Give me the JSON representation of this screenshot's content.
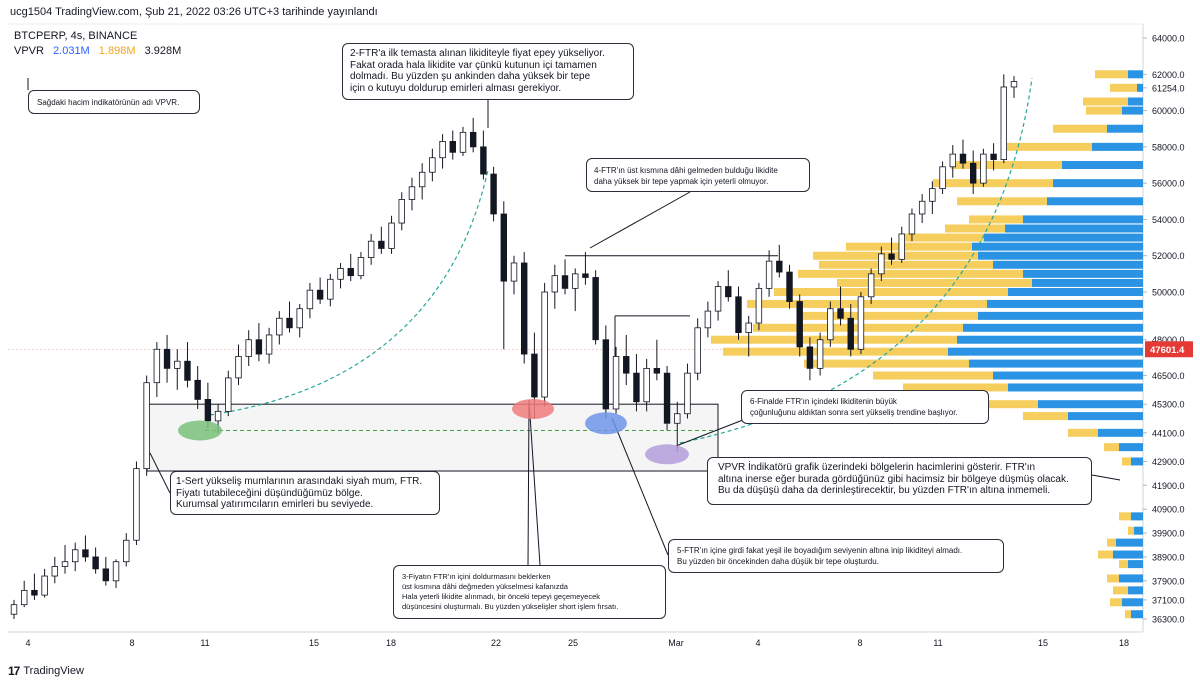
{
  "header": {
    "publish_line": "ucg1504 TradingView.com, Şub 21, 2022 03:26 UTC+3 tarihinde yayınlandı",
    "symbol_line": "BTCPERP, 4s, BINANCE",
    "indicator_name": "VPVR",
    "vpvr_values": [
      "2.031M",
      "1.898M",
      "3.928M"
    ],
    "colors": {
      "value_blue": "#2962ff",
      "value_orange": "#f2a51a",
      "value_dark": "#131722"
    }
  },
  "footer": {
    "brand": "TradingView",
    "logo": "17"
  },
  "chart_data": {
    "type": "candlestick",
    "price_axis_ticks": [
      "64000.0",
      "62000.0",
      "61254.0",
      "60000.0",
      "58000.0",
      "56000.0",
      "54000.0",
      "52000.0",
      "50000.0",
      "48000.0",
      "46500.0",
      "45300.0",
      "44100.0",
      "42900.0",
      "41900.0",
      "40900.0",
      "39900.0",
      "38900.0",
      "37900.0",
      "37100.0",
      "36300.0"
    ],
    "last_price_label": "47601.4",
    "time_axis_ticks": [
      "4",
      "8",
      "11",
      "15",
      "18",
      "22",
      "25",
      "Mar",
      "4",
      "8",
      "11",
      "15",
      "18"
    ],
    "candles": [
      [
        36500,
        37100,
        36300,
        36900
      ],
      [
        36900,
        37900,
        36800,
        37500
      ],
      [
        37500,
        38200,
        37100,
        37300
      ],
      [
        37300,
        38400,
        37200,
        38100
      ],
      [
        38100,
        38900,
        37800,
        38500
      ],
      [
        38500,
        39400,
        38200,
        38700
      ],
      [
        38700,
        39500,
        38300,
        39200
      ],
      [
        39200,
        39800,
        38700,
        38900
      ],
      [
        38900,
        39300,
        38200,
        38400
      ],
      [
        38400,
        38900,
        37700,
        37900
      ],
      [
        37900,
        38800,
        37600,
        38700
      ],
      [
        38700,
        39900,
        38500,
        39600
      ],
      [
        39600,
        42900,
        39400,
        42600
      ],
      [
        42600,
        46500,
        42300,
        46200
      ],
      [
        46200,
        47900,
        45600,
        47600
      ],
      [
        47600,
        48200,
        46200,
        46800
      ],
      [
        46800,
        47600,
        45900,
        47100
      ],
      [
        47100,
        47900,
        46000,
        46300
      ],
      [
        46300,
        46900,
        45100,
        45500
      ],
      [
        45500,
        46200,
        44300,
        44600
      ],
      [
        44600,
        45300,
        44100,
        45000
      ],
      [
        45000,
        46700,
        44800,
        46400
      ],
      [
        46400,
        47800,
        46100,
        47300
      ],
      [
        47300,
        48400,
        46900,
        48000
      ],
      [
        48000,
        48700,
        47100,
        47400
      ],
      [
        47400,
        48500,
        47000,
        48200
      ],
      [
        48200,
        49200,
        47800,
        48900
      ],
      [
        48900,
        49600,
        48300,
        48500
      ],
      [
        48500,
        49500,
        48100,
        49300
      ],
      [
        49300,
        50500,
        48900,
        50100
      ],
      [
        50100,
        50800,
        49500,
        49700
      ],
      [
        49700,
        51000,
        49400,
        50700
      ],
      [
        50700,
        51600,
        50200,
        51300
      ],
      [
        51300,
        52100,
        50600,
        50900
      ],
      [
        50900,
        52200,
        50700,
        51900
      ],
      [
        51900,
        53200,
        51500,
        52800
      ],
      [
        52800,
        53600,
        52100,
        52400
      ],
      [
        52400,
        54200,
        52100,
        53800
      ],
      [
        53800,
        55500,
        53400,
        55100
      ],
      [
        55100,
        56300,
        54500,
        55800
      ],
      [
        55800,
        57100,
        55100,
        56600
      ],
      [
        56600,
        57900,
        56100,
        57400
      ],
      [
        57400,
        58700,
        56800,
        58300
      ],
      [
        58300,
        58900,
        57300,
        57700
      ],
      [
        57700,
        59100,
        57500,
        58800
      ],
      [
        58800,
        59600,
        57700,
        58000
      ],
      [
        58000,
        58900,
        56200,
        56500
      ],
      [
        56500,
        56900,
        53900,
        54300
      ],
      [
        54300,
        55000,
        47600,
        50600
      ],
      [
        50600,
        52000,
        49900,
        51600
      ],
      [
        51600,
        52200,
        47000,
        47400
      ],
      [
        47400,
        48300,
        44700,
        45600
      ],
      [
        45600,
        50500,
        45200,
        50000
      ],
      [
        50000,
        51500,
        49300,
        50900
      ],
      [
        50900,
        51800,
        49900,
        50200
      ],
      [
        50200,
        51300,
        49200,
        51000
      ],
      [
        51000,
        52200,
        50400,
        50800
      ],
      [
        50800,
        51200,
        47800,
        48000
      ],
      [
        48000,
        48600,
        44700,
        45100
      ],
      [
        45100,
        47700,
        44900,
        47300
      ],
      [
        47300,
        48200,
        46100,
        46600
      ],
      [
        46600,
        47400,
        45000,
        45400
      ],
      [
        45400,
        47200,
        45000,
        46800
      ],
      [
        46800,
        48000,
        46300,
        46600
      ],
      [
        46600,
        46900,
        44200,
        44500
      ],
      [
        44500,
        45400,
        43300,
        44900
      ],
      [
        44900,
        47000,
        44700,
        46600
      ],
      [
        46600,
        48900,
        46300,
        48500
      ],
      [
        48500,
        49600,
        48100,
        49200
      ],
      [
        49200,
        50600,
        48800,
        50300
      ],
      [
        50300,
        51200,
        49600,
        49800
      ],
      [
        49800,
        50300,
        48000,
        48300
      ],
      [
        48300,
        49000,
        47300,
        48700
      ],
      [
        48700,
        50500,
        48400,
        50200
      ],
      [
        50200,
        52300,
        49800,
        51700
      ],
      [
        51700,
        52600,
        50800,
        51100
      ],
      [
        51100,
        51500,
        49300,
        49600
      ],
      [
        49600,
        49900,
        47300,
        47700
      ],
      [
        47700,
        48100,
        46300,
        46800
      ],
      [
        46800,
        48300,
        46500,
        48000
      ],
      [
        48000,
        49600,
        47700,
        49300
      ],
      [
        49300,
        50300,
        48600,
        48900
      ],
      [
        48900,
        49500,
        47300,
        47600
      ],
      [
        47600,
        50000,
        47400,
        49800
      ],
      [
        49800,
        51300,
        49500,
        51000
      ],
      [
        51000,
        52500,
        50600,
        52100
      ],
      [
        52100,
        53000,
        51500,
        51800
      ],
      [
        51800,
        53600,
        51600,
        53200
      ],
      [
        53200,
        54600,
        52800,
        54300
      ],
      [
        54300,
        55400,
        53800,
        55000
      ],
      [
        55000,
        56100,
        54300,
        55700
      ],
      [
        55700,
        57200,
        55400,
        56900
      ],
      [
        56900,
        58100,
        56300,
        57600
      ],
      [
        57600,
        58400,
        56800,
        57100
      ],
      [
        57100,
        57800,
        55400,
        56000
      ],
      [
        56000,
        57900,
        55800,
        57600
      ],
      [
        57600,
        58200,
        56700,
        57300
      ],
      [
        57300,
        62000,
        57100,
        61300
      ],
      [
        61300,
        61900,
        60700,
        61600
      ]
    ],
    "volume_profile": [
      {
        "price": 62000,
        "blue": 0.05,
        "orange": 0.11
      },
      {
        "price": 61254,
        "blue": 0.02,
        "orange": 0.09
      },
      {
        "price": 60500,
        "blue": 0.05,
        "orange": 0.15
      },
      {
        "price": 60000,
        "blue": 0.07,
        "orange": 0.12
      },
      {
        "price": 59000,
        "blue": 0.12,
        "orange": 0.18
      },
      {
        "price": 58000,
        "blue": 0.17,
        "orange": 0.3
      },
      {
        "price": 57000,
        "blue": 0.27,
        "orange": 0.37
      },
      {
        "price": 56000,
        "blue": 0.3,
        "orange": 0.4
      },
      {
        "price": 55000,
        "blue": 0.32,
        "orange": 0.3
      },
      {
        "price": 54000,
        "blue": 0.4,
        "orange": 0.18
      },
      {
        "price": 53500,
        "blue": 0.46,
        "orange": 0.2
      },
      {
        "price": 53000,
        "blue": 0.53,
        "orange": 0.27
      },
      {
        "price": 52500,
        "blue": 0.57,
        "orange": 0.42
      },
      {
        "price": 52000,
        "blue": 0.55,
        "orange": 0.55
      },
      {
        "price": 51500,
        "blue": 0.5,
        "orange": 0.58
      },
      {
        "price": 51000,
        "blue": 0.4,
        "orange": 0.75
      },
      {
        "price": 50500,
        "blue": 0.37,
        "orange": 0.65
      },
      {
        "price": 50000,
        "blue": 0.45,
        "orange": 0.78
      },
      {
        "price": 49500,
        "blue": 0.52,
        "orange": 0.8
      },
      {
        "price": 49000,
        "blue": 0.55,
        "orange": 0.6
      },
      {
        "price": 48500,
        "blue": 0.6,
        "orange": 0.7
      },
      {
        "price": 48000,
        "blue": 0.62,
        "orange": 0.82
      },
      {
        "price": 47500,
        "blue": 0.65,
        "orange": 0.75
      },
      {
        "price": 47000,
        "blue": 0.58,
        "orange": 0.55
      },
      {
        "price": 46500,
        "blue": 0.5,
        "orange": 0.4
      },
      {
        "price": 46000,
        "blue": 0.45,
        "orange": 0.35
      },
      {
        "price": 45300,
        "blue": 0.35,
        "orange": 0.2
      },
      {
        "price": 44800,
        "blue": 0.25,
        "orange": 0.15
      },
      {
        "price": 44100,
        "blue": 0.15,
        "orange": 0.1
      },
      {
        "price": 43500,
        "blue": 0.08,
        "orange": 0.05
      },
      {
        "price": 42900,
        "blue": 0.04,
        "orange": 0.03
      },
      {
        "price": 40600,
        "blue": 0.04,
        "orange": 0.04
      },
      {
        "price": 40000,
        "blue": 0.03,
        "orange": 0.02
      },
      {
        "price": 39500,
        "blue": 0.09,
        "orange": 0.03
      },
      {
        "price": 39000,
        "blue": 0.1,
        "orange": 0.05
      },
      {
        "price": 38600,
        "blue": 0.05,
        "orange": 0.03
      },
      {
        "price": 38000,
        "blue": 0.08,
        "orange": 0.04
      },
      {
        "price": 37500,
        "blue": 0.05,
        "orange": 0.05
      },
      {
        "price": 37000,
        "blue": 0.07,
        "orange": 0.04
      },
      {
        "price": 36500,
        "blue": 0.04,
        "orange": 0.02
      }
    ],
    "colors": {
      "up": "#ffffff",
      "down": "#131722",
      "wick": "#131722",
      "vp_blue": "#2a93e3",
      "vp_orange": "#f5c542",
      "green_highlight": "#7ac17a",
      "red_highlight": "#f07b7b",
      "blue_highlight": "#6f95e8",
      "purple_highlight": "#b39ddb",
      "dashed_curve": "#26a69a",
      "last_price": "#e53935"
    }
  },
  "annotations": [
    {
      "id": "vpvr-note",
      "text": "Sağdaki hacim indikatörünün adı VPVR."
    },
    {
      "id": "ftr2",
      "text": "2-FTR'a ilk temasta alınan likiditeyle fiyat epey yükseliyor.\nFakat orada hala likidite var çünkü kutunun içi tamamen\ndolmadı. Bu yüzden şu ankinden daha yüksek bir tepe\niçin o kutuyu doldurup emirleri alması gerekiyor."
    },
    {
      "id": "ftr4",
      "text": "4-FTR'ın üst kısmına dâhi gelmeden bulduğu likidite\ndaha yüksek bir tepe yapmak için yeterli olmuyor."
    },
    {
      "id": "ftr6",
      "text": "6-Finalde FTR'ın içindeki likiditenin büyük\nçoğunluğunu aldıktan sonra sert yükseliş trendine başlıyor."
    },
    {
      "id": "vpvr-explain",
      "text": "VPVR İndikatörü grafik üzerindeki bölgelerin hacimlerini gösterir. FTR'ın\naltına inerse eğer burada gördüğünüz gibi hacimsiz bir bölgeye düşmüş olacak.\nBu da düşüşü daha da derinleştirecektir, bu yüzden FTR'ın altına inmemeli."
    },
    {
      "id": "ftr1",
      "text": "1-Sert yükseliş mumlarının arasındaki siyah mum, FTR.\nFiyatı tutabileceğini düşündüğümüz bölge.\nKurumsal yatırımcıların emirleri bu seviyede."
    },
    {
      "id": "ftr5",
      "text": "5-FTR'ın içine girdi fakat yeşil ile boyadığım seviyenin altına inip likiditeyi almadı.\nBu yüzden bir öncekinden daha düşük bir tepe oluşturdu."
    },
    {
      "id": "ftr3",
      "text": "3-Fiyatın FTR'ın içini doldurmasını beklerken\nüst kısmına dâhi değmeden yükselmesi kafanızda\nHala yeterli likidite alınmadı, bir önceki tepeyi geçemeyecek\ndüşüncesini oluşturmalı. Bu yüzden yükselişler short işlem fırsatı."
    }
  ]
}
